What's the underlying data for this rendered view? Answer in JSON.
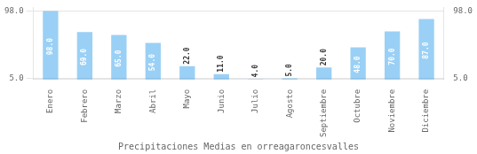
{
  "chart_data": {
    "type": "bar",
    "x_label": "Precipitaciones Medias en orreagaroncesvalles",
    "categories": [
      "Enero",
      "Febrero",
      "Marzo",
      "Abril",
      "Mayo",
      "Junio",
      "Julio",
      "Agosto",
      "Septiembre",
      "Octubre",
      "Noviembre",
      "Diciembre"
    ],
    "values": [
      98.0,
      69.0,
      65.0,
      54.0,
      22.0,
      11.0,
      4.0,
      5.0,
      20.0,
      48.0,
      70.0,
      87.0
    ],
    "value_labels": [
      "98.0",
      "69.0",
      "65.0",
      "54.0",
      "22.0",
      "11.0",
      "4.0",
      "5.0",
      "20.0",
      "48.0",
      "70.0",
      "87.0"
    ],
    "data_labels": true,
    "ylim": [
      3.5,
      103
    ],
    "yticks": [
      {
        "value": 5,
        "label": "5.0"
      },
      {
        "value": 98,
        "label": "98.0"
      }
    ],
    "grid": true
  }
}
